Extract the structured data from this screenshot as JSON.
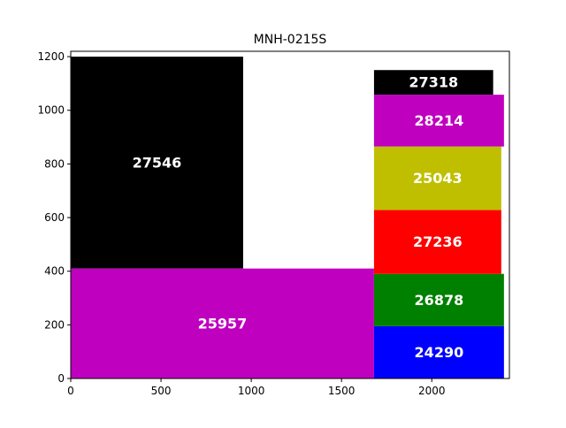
{
  "chart_data": {
    "type": "rectangle-packing",
    "title": "MNH-0215S",
    "xlabel": "",
    "ylabel": "",
    "xlim": [
      0,
      2430
    ],
    "ylim": [
      0,
      1220
    ],
    "x_ticks": [
      0,
      500,
      1000,
      1500,
      2000
    ],
    "y_ticks": [
      0,
      200,
      400,
      600,
      800,
      1000,
      1200
    ],
    "grid": false,
    "legend": false,
    "rectangles": [
      {
        "label": "27546",
        "x0": 0,
        "x1": 955,
        "y0": 410,
        "y1": 1200,
        "color": "#000000"
      },
      {
        "label": "25957",
        "x0": 0,
        "x1": 1680,
        "y0": 0,
        "y1": 410,
        "color": "#bf00bf"
      },
      {
        "label": "24290",
        "x0": 1680,
        "x1": 2400,
        "y0": 0,
        "y1": 195,
        "color": "#0000ff"
      },
      {
        "label": "26878",
        "x0": 1680,
        "x1": 2400,
        "y0": 195,
        "y1": 390,
        "color": "#008000"
      },
      {
        "label": "27236",
        "x0": 1680,
        "x1": 2385,
        "y0": 390,
        "y1": 628,
        "color": "#ff0000"
      },
      {
        "label": "25043",
        "x0": 1680,
        "x1": 2385,
        "y0": 628,
        "y1": 865,
        "color": "#bfbf00"
      },
      {
        "label": "28214",
        "x0": 1680,
        "x1": 2400,
        "y0": 865,
        "y1": 1058,
        "color": "#bf00bf"
      },
      {
        "label": "27318",
        "x0": 1680,
        "x1": 2340,
        "y0": 1058,
        "y1": 1150,
        "color": "#000000"
      }
    ]
  }
}
